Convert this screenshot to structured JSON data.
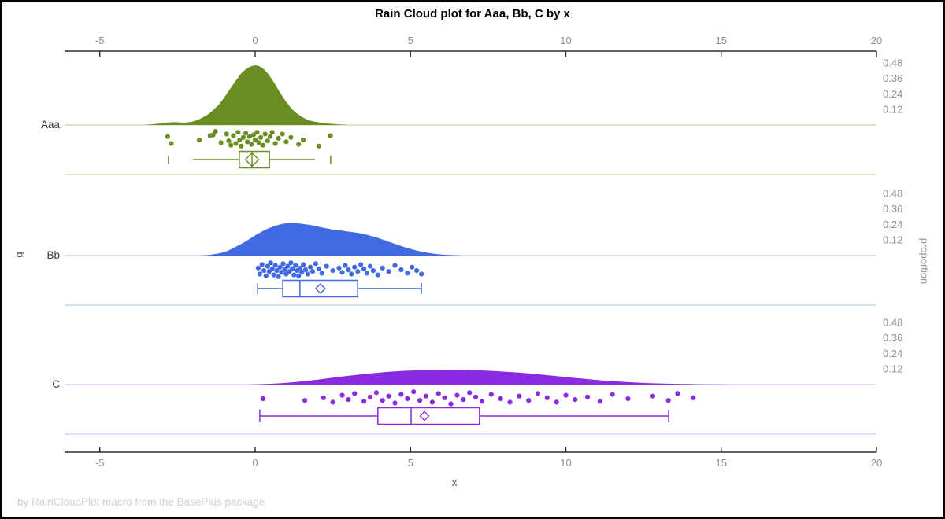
{
  "title": "Rain Cloud plot for Aaa, Bb, C by x",
  "footer": "by RainCloudPlot macro from the BasePlus package",
  "chart_data": {
    "type": "raincloud",
    "xlabel": "x",
    "ylabel_left": "g",
    "ylabel_right": "proportion",
    "x_ticks": [
      -5,
      0,
      5,
      10,
      15,
      20
    ],
    "xlim": [
      -6.15,
      20.0
    ],
    "proportion_ticks": [
      0.12,
      0.24,
      0.36,
      0.48
    ],
    "legend_position": "none",
    "grid": false,
    "groups": [
      {
        "name": "Aaa",
        "color": "#6B8E23",
        "light_color": "#C9D6A3",
        "density": [
          [
            -3.6,
            0.0
          ],
          [
            -3.3,
            0.006
          ],
          [
            -3.0,
            0.014
          ],
          [
            -2.8,
            0.02
          ],
          [
            -2.6,
            0.022
          ],
          [
            -2.4,
            0.02
          ],
          [
            -2.2,
            0.02
          ],
          [
            -2.0,
            0.028
          ],
          [
            -1.8,
            0.045
          ],
          [
            -1.6,
            0.07
          ],
          [
            -1.4,
            0.105
          ],
          [
            -1.2,
            0.15
          ],
          [
            -1.0,
            0.21
          ],
          [
            -0.8,
            0.28
          ],
          [
            -0.6,
            0.35
          ],
          [
            -0.4,
            0.41
          ],
          [
            -0.2,
            0.445
          ],
          [
            0.0,
            0.46
          ],
          [
            0.2,
            0.445
          ],
          [
            0.4,
            0.4
          ],
          [
            0.6,
            0.33
          ],
          [
            0.8,
            0.25
          ],
          [
            1.0,
            0.18
          ],
          [
            1.2,
            0.12
          ],
          [
            1.4,
            0.08
          ],
          [
            1.6,
            0.05
          ],
          [
            1.8,
            0.033
          ],
          [
            2.0,
            0.022
          ],
          [
            2.2,
            0.015
          ],
          [
            2.4,
            0.01
          ],
          [
            2.6,
            0.006
          ],
          [
            2.8,
            0.003
          ],
          [
            3.0,
            0.0
          ]
        ],
        "points": [
          [
            -2.82,
            0.35
          ],
          [
            -2.7,
            0.75
          ],
          [
            -1.8,
            0.55
          ],
          [
            -1.45,
            0.3
          ],
          [
            -1.35,
            0.25
          ],
          [
            -1.28,
            0.05
          ],
          [
            -1.1,
            0.7
          ],
          [
            -0.92,
            0.2
          ],
          [
            -0.85,
            0.6
          ],
          [
            -0.78,
            0.85
          ],
          [
            -0.7,
            0.3
          ],
          [
            -0.62,
            0.75
          ],
          [
            -0.55,
            0.1
          ],
          [
            -0.5,
            0.55
          ],
          [
            -0.45,
            0.9
          ],
          [
            -0.38,
            0.4
          ],
          [
            -0.3,
            0.15
          ],
          [
            -0.25,
            0.65
          ],
          [
            -0.18,
            0.35
          ],
          [
            -0.12,
            0.8
          ],
          [
            -0.05,
            0.25
          ],
          [
            0.0,
            0.55
          ],
          [
            0.06,
            0.1
          ],
          [
            0.12,
            0.7
          ],
          [
            0.18,
            0.4
          ],
          [
            0.25,
            0.85
          ],
          [
            0.32,
            0.2
          ],
          [
            0.4,
            0.6
          ],
          [
            0.48,
            0.35
          ],
          [
            0.55,
            0.1
          ],
          [
            0.65,
            0.75
          ],
          [
            0.75,
            0.45
          ],
          [
            0.88,
            0.2
          ],
          [
            1.0,
            0.65
          ],
          [
            1.15,
            0.4
          ],
          [
            1.4,
            0.8
          ],
          [
            1.55,
            0.55
          ],
          [
            2.05,
            0.9
          ],
          [
            2.42,
            0.3
          ]
        ],
        "box": {
          "fence_low": -2.79,
          "whisker_low": -2.0,
          "q1": -0.51,
          "median": -0.1,
          "mean": -0.1,
          "q3": 0.46,
          "whisker_high": 1.93,
          "fence_high": 2.43,
          "caps": false
        }
      },
      {
        "name": "Bb",
        "color": "#4169E1",
        "light_color": "#BCCBF2",
        "density": [
          [
            -1.8,
            0.0
          ],
          [
            -1.5,
            0.005
          ],
          [
            -1.2,
            0.015
          ],
          [
            -0.9,
            0.035
          ],
          [
            -0.6,
            0.07
          ],
          [
            -0.3,
            0.11
          ],
          [
            0.0,
            0.155
          ],
          [
            0.3,
            0.195
          ],
          [
            0.6,
            0.225
          ],
          [
            0.9,
            0.245
          ],
          [
            1.2,
            0.25
          ],
          [
            1.5,
            0.245
          ],
          [
            1.8,
            0.235
          ],
          [
            2.1,
            0.22
          ],
          [
            2.4,
            0.205
          ],
          [
            2.7,
            0.195
          ],
          [
            3.0,
            0.185
          ],
          [
            3.3,
            0.175
          ],
          [
            3.6,
            0.16
          ],
          [
            3.9,
            0.14
          ],
          [
            4.2,
            0.115
          ],
          [
            4.5,
            0.09
          ],
          [
            4.8,
            0.065
          ],
          [
            5.1,
            0.045
          ],
          [
            5.4,
            0.028
          ],
          [
            5.7,
            0.016
          ],
          [
            6.0,
            0.008
          ],
          [
            6.3,
            0.004
          ],
          [
            6.6,
            0.0
          ]
        ],
        "points": [
          [
            0.1,
            0.4
          ],
          [
            0.15,
            0.75
          ],
          [
            0.22,
            0.2
          ],
          [
            0.28,
            0.55
          ],
          [
            0.35,
            0.85
          ],
          [
            0.4,
            0.3
          ],
          [
            0.45,
            0.6
          ],
          [
            0.5,
            0.1
          ],
          [
            0.55,
            0.45
          ],
          [
            0.6,
            0.8
          ],
          [
            0.65,
            0.25
          ],
          [
            0.7,
            0.55
          ],
          [
            0.75,
            0.9
          ],
          [
            0.8,
            0.35
          ],
          [
            0.85,
            0.65
          ],
          [
            0.9,
            0.15
          ],
          [
            0.95,
            0.5
          ],
          [
            1.0,
            0.75
          ],
          [
            1.05,
            0.3
          ],
          [
            1.1,
            0.6
          ],
          [
            1.15,
            0.1
          ],
          [
            1.2,
            0.45
          ],
          [
            1.25,
            0.8
          ],
          [
            1.3,
            0.25
          ],
          [
            1.35,
            0.55
          ],
          [
            1.4,
            0.85
          ],
          [
            1.45,
            0.4
          ],
          [
            1.5,
            0.65
          ],
          [
            1.55,
            0.2
          ],
          [
            1.62,
            0.5
          ],
          [
            1.7,
            0.75
          ],
          [
            1.78,
            0.35
          ],
          [
            1.85,
            0.6
          ],
          [
            1.95,
            0.15
          ],
          [
            2.05,
            0.45
          ],
          [
            2.15,
            0.7
          ],
          [
            2.3,
            0.3
          ],
          [
            2.5,
            0.55
          ],
          [
            2.7,
            0.4
          ],
          [
            2.8,
            0.65
          ],
          [
            2.9,
            0.25
          ],
          [
            3.0,
            0.5
          ],
          [
            3.1,
            0.75
          ],
          [
            3.2,
            0.35
          ],
          [
            3.3,
            0.6
          ],
          [
            3.4,
            0.2
          ],
          [
            3.5,
            0.45
          ],
          [
            3.6,
            0.7
          ],
          [
            3.7,
            0.3
          ],
          [
            3.8,
            0.55
          ],
          [
            3.95,
            0.8
          ],
          [
            4.1,
            0.4
          ],
          [
            4.3,
            0.6
          ],
          [
            4.5,
            0.25
          ],
          [
            4.7,
            0.5
          ],
          [
            4.9,
            0.7
          ],
          [
            5.05,
            0.35
          ],
          [
            5.2,
            0.55
          ],
          [
            5.35,
            0.75
          ]
        ],
        "box": {
          "whisker_low": 0.08,
          "q1": 0.89,
          "median": 1.44,
          "mean": 2.1,
          "q3": 3.3,
          "whisker_high": 5.35,
          "caps": true
        }
      },
      {
        "name": "C",
        "color": "#8A2BE2",
        "light_color": "#DCC2F5",
        "density": [
          [
            -0.2,
            0.0
          ],
          [
            0.3,
            0.004
          ],
          [
            0.8,
            0.01
          ],
          [
            1.3,
            0.02
          ],
          [
            1.8,
            0.032
          ],
          [
            2.3,
            0.047
          ],
          [
            2.8,
            0.062
          ],
          [
            3.3,
            0.076
          ],
          [
            3.8,
            0.088
          ],
          [
            4.3,
            0.098
          ],
          [
            4.8,
            0.106
          ],
          [
            5.3,
            0.111
          ],
          [
            5.8,
            0.114
          ],
          [
            6.3,
            0.115
          ],
          [
            6.8,
            0.113
          ],
          [
            7.3,
            0.109
          ],
          [
            7.8,
            0.103
          ],
          [
            8.3,
            0.095
          ],
          [
            8.8,
            0.086
          ],
          [
            9.3,
            0.075
          ],
          [
            9.8,
            0.063
          ],
          [
            10.3,
            0.051
          ],
          [
            10.8,
            0.04
          ],
          [
            11.3,
            0.03
          ],
          [
            11.8,
            0.022
          ],
          [
            12.3,
            0.015
          ],
          [
            12.8,
            0.01
          ],
          [
            13.3,
            0.0065
          ],
          [
            13.8,
            0.004
          ],
          [
            14.3,
            0.0025
          ],
          [
            14.8,
            0.0012
          ],
          [
            15.3,
            0.0
          ]
        ],
        "points": [
          [
            0.25,
            0.5
          ],
          [
            1.6,
            0.6
          ],
          [
            2.2,
            0.45
          ],
          [
            2.5,
            0.7
          ],
          [
            2.8,
            0.3
          ],
          [
            3.0,
            0.55
          ],
          [
            3.2,
            0.2
          ],
          [
            3.5,
            0.65
          ],
          [
            3.7,
            0.4
          ],
          [
            3.9,
            0.15
          ],
          [
            4.1,
            0.6
          ],
          [
            4.3,
            0.35
          ],
          [
            4.5,
            0.75
          ],
          [
            4.7,
            0.25
          ],
          [
            4.9,
            0.5
          ],
          [
            5.1,
            0.1
          ],
          [
            5.3,
            0.6
          ],
          [
            5.5,
            0.35
          ],
          [
            5.7,
            0.7
          ],
          [
            5.9,
            0.2
          ],
          [
            6.1,
            0.45
          ],
          [
            6.3,
            0.8
          ],
          [
            6.5,
            0.3
          ],
          [
            6.7,
            0.55
          ],
          [
            6.9,
            0.15
          ],
          [
            7.1,
            0.4
          ],
          [
            7.3,
            0.65
          ],
          [
            7.6,
            0.25
          ],
          [
            7.9,
            0.5
          ],
          [
            8.2,
            0.7
          ],
          [
            8.5,
            0.35
          ],
          [
            8.8,
            0.6
          ],
          [
            9.1,
            0.2
          ],
          [
            9.4,
            0.45
          ],
          [
            9.7,
            0.7
          ],
          [
            10.0,
            0.3
          ],
          [
            10.3,
            0.55
          ],
          [
            10.7,
            0.4
          ],
          [
            11.1,
            0.65
          ],
          [
            11.5,
            0.25
          ],
          [
            12.0,
            0.5
          ],
          [
            12.8,
            0.35
          ],
          [
            13.3,
            0.6
          ],
          [
            13.6,
            0.2
          ],
          [
            14.1,
            0.45
          ]
        ],
        "box": {
          "whisker_low": 0.15,
          "q1": 3.95,
          "median": 5.02,
          "mean": 5.45,
          "q3": 7.22,
          "whisker_high": 13.31,
          "caps": true
        }
      }
    ]
  }
}
